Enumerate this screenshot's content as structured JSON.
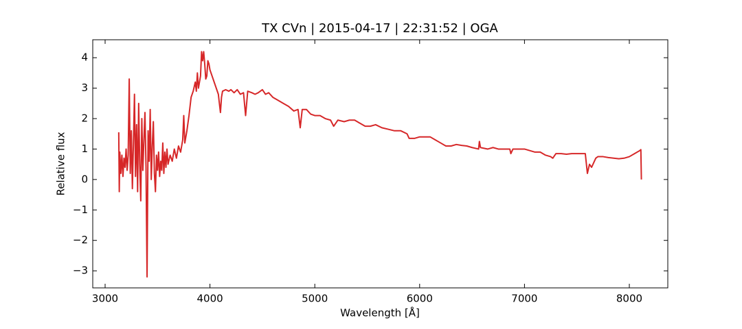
{
  "chart_data": {
    "type": "line",
    "title": "TX CVn | 2015-04-17 | 22:31:52 | OGA",
    "xlabel": "Wavelength [Å]",
    "ylabel": "Relative flux",
    "xlim": [
      2882,
      8367
    ],
    "ylim": [
      -3.56,
      4.59
    ],
    "xticks": [
      3000,
      4000,
      5000,
      6000,
      7000,
      8000
    ],
    "yticks": [
      {
        "value": -3,
        "label": "−3"
      },
      {
        "value": -2,
        "label": "−2"
      },
      {
        "value": -1,
        "label": "−1"
      },
      0,
      1,
      2,
      3,
      4
    ],
    "x": [
      3130,
      3135,
      3140,
      3150,
      3160,
      3170,
      3180,
      3190,
      3200,
      3210,
      3220,
      3230,
      3240,
      3250,
      3260,
      3270,
      3280,
      3290,
      3300,
      3310,
      3320,
      3330,
      3340,
      3350,
      3360,
      3370,
      3380,
      3390,
      3400,
      3410,
      3420,
      3430,
      3440,
      3450,
      3460,
      3470,
      3480,
      3490,
      3500,
      3510,
      3520,
      3530,
      3540,
      3550,
      3560,
      3570,
      3580,
      3590,
      3600,
      3620,
      3640,
      3660,
      3680,
      3700,
      3720,
      3740,
      3750,
      3760,
      3780,
      3800,
      3820,
      3840,
      3860,
      3870,
      3880,
      3890,
      3910,
      3920,
      3930,
      3940,
      3950,
      3960,
      3970,
      3980,
      3990,
      4000,
      4020,
      4040,
      4060,
      4080,
      4090,
      4100,
      4110,
      4120,
      4150,
      4180,
      4200,
      4230,
      4260,
      4290,
      4320,
      4340,
      4360,
      4400,
      4430,
      4460,
      4500,
      4530,
      4560,
      4600,
      4650,
      4700,
      4750,
      4800,
      4840,
      4861,
      4880,
      4920,
      4960,
      5000,
      5050,
      5100,
      5150,
      5180,
      5220,
      5280,
      5330,
      5380,
      5430,
      5480,
      5530,
      5580,
      5640,
      5700,
      5760,
      5820,
      5880,
      5900,
      5950,
      6000,
      6050,
      6100,
      6150,
      6200,
      6250,
      6300,
      6350,
      6400,
      6450,
      6500,
      6562,
      6570,
      6580,
      6650,
      6700,
      6750,
      6800,
      6860,
      6870,
      6890,
      6950,
      7000,
      7050,
      7100,
      7150,
      7200,
      7250,
      7270,
      7300,
      7350,
      7400,
      7450,
      7500,
      7580,
      7600,
      7620,
      7640,
      7680,
      7700,
      7750,
      7800,
      7850,
      7900,
      7950,
      8000,
      8050,
      8100,
      8110,
      8115
    ],
    "series": [
      {
        "color": "#d62728",
        "values": [
          1.55,
          -0.4,
          0.9,
          0.2,
          0.8,
          0.1,
          0.7,
          0.4,
          1.0,
          0.3,
          0.8,
          3.3,
          0.2,
          1.6,
          -0.3,
          1.2,
          2.8,
          0.1,
          1.8,
          -0.4,
          2.5,
          0.5,
          -0.7,
          2.0,
          0.3,
          1.3,
          2.2,
          0.4,
          -3.2,
          1.6,
          0.6,
          2.3,
          0.0,
          1.1,
          1.9,
          0.2,
          -0.4,
          0.8,
          0.3,
          0.9,
          0.1,
          0.6,
          0.3,
          1.2,
          0.2,
          0.9,
          0.4,
          1.0,
          0.5,
          0.8,
          0.6,
          1.0,
          0.7,
          1.1,
          0.9,
          1.3,
          2.1,
          1.2,
          1.6,
          2.1,
          2.7,
          2.9,
          3.2,
          2.9,
          3.5,
          3.0,
          3.4,
          4.2,
          3.9,
          4.2,
          3.8,
          3.3,
          3.4,
          3.9,
          3.8,
          3.6,
          3.4,
          3.2,
          3.0,
          2.8,
          2.5,
          2.2,
          2.7,
          2.9,
          2.95,
          2.9,
          2.95,
          2.85,
          2.95,
          2.8,
          2.85,
          2.1,
          2.9,
          2.85,
          2.8,
          2.85,
          2.95,
          2.8,
          2.85,
          2.7,
          2.6,
          2.5,
          2.4,
          2.25,
          2.3,
          1.7,
          2.3,
          2.3,
          2.15,
          2.1,
          2.1,
          2.0,
          1.95,
          1.75,
          1.95,
          1.9,
          1.95,
          1.95,
          1.85,
          1.75,
          1.75,
          1.8,
          1.7,
          1.65,
          1.6,
          1.6,
          1.5,
          1.35,
          1.35,
          1.4,
          1.4,
          1.4,
          1.3,
          1.2,
          1.1,
          1.1,
          1.15,
          1.12,
          1.1,
          1.05,
          1.0,
          1.25,
          1.05,
          1.0,
          1.05,
          1.0,
          1.0,
          1.0,
          0.85,
          1.0,
          1.0,
          1.0,
          0.95,
          0.9,
          0.9,
          0.8,
          0.75,
          0.7,
          0.85,
          0.85,
          0.83,
          0.85,
          0.85,
          0.85,
          0.2,
          0.5,
          0.4,
          0.7,
          0.75,
          0.75,
          0.72,
          0.7,
          0.68,
          0.7,
          0.75,
          0.85,
          0.95,
          0.98,
          0.0
        ]
      }
    ]
  }
}
